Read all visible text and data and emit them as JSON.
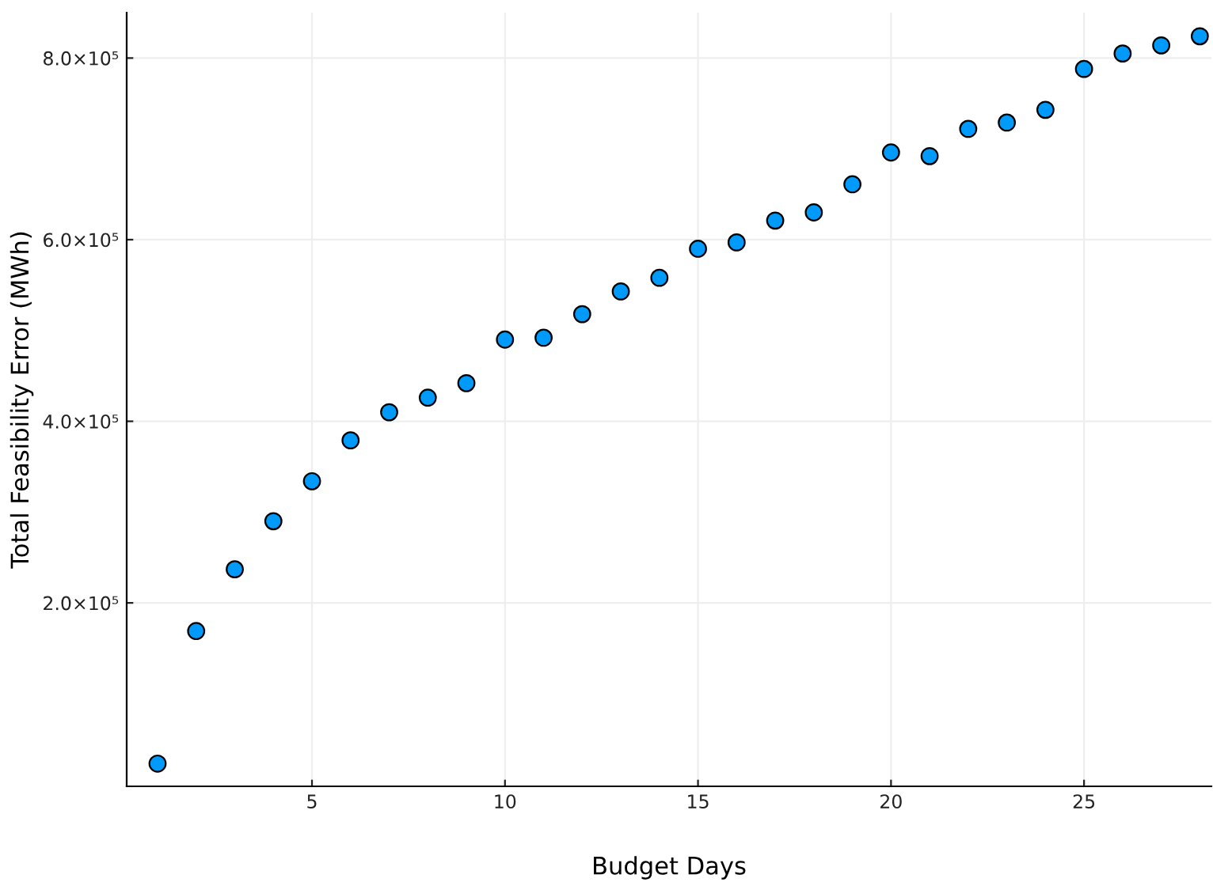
{
  "chart_data": {
    "type": "scatter",
    "xlabel": "Budget Days",
    "ylabel": "Total Feasibility Error (MWh)",
    "x": [
      1,
      2,
      3,
      4,
      5,
      6,
      7,
      8,
      9,
      10,
      11,
      12,
      13,
      14,
      15,
      16,
      17,
      18,
      19,
      20,
      21,
      22,
      23,
      24,
      25,
      26,
      27,
      28
    ],
    "series": [
      {
        "color": "#009afa",
        "values": [
          23000,
          169000,
          237000,
          290000,
          334000,
          379000,
          410000,
          426000,
          442000,
          490000,
          492000,
          518000,
          543000,
          558000,
          590000,
          597000,
          621000,
          630000,
          661000,
          696000,
          692000,
          722000,
          729000,
          743000,
          788000,
          805000,
          814000,
          824000
        ]
      }
    ],
    "xlim": [
      0.2,
      28.3
    ],
    "ylim": [
      -2000,
      850000
    ],
    "xticks": [
      5,
      10,
      15,
      20,
      25
    ],
    "yticks": [
      {
        "value": 200000,
        "label": "2.0×10⁵"
      },
      {
        "value": 400000,
        "label": "4.0×10⁵"
      },
      {
        "value": 600000,
        "label": "6.0×10⁵"
      },
      {
        "value": 800000,
        "label": "8.0×10⁵"
      }
    ],
    "grid": true,
    "marker": "circle"
  }
}
